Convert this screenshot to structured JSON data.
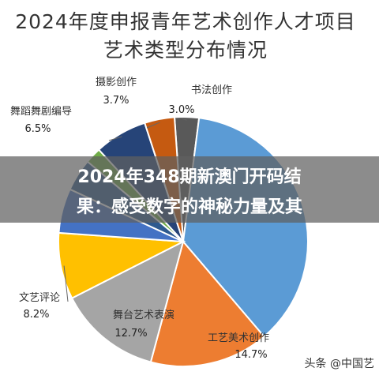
{
  "title_line1": "2024年度申报青年艺术创作人才项目",
  "title_line2": "艺术类型分布情况",
  "overlay": {
    "line1": "2024年348期新澳门开码结",
    "line2": "果：感受数字的神秘力量及其"
  },
  "watermark": "头条 @中国艺",
  "chart_data": {
    "type": "pie",
    "title": "2024年度申报青年艺术创作人才项目艺术类型分布情况",
    "categories": [
      "书法创作",
      "",
      "工艺美术创作",
      "舞台艺术表演",
      "文艺评论",
      "",
      "",
      "",
      "舞蹈舞剧编导",
      "摄影创作"
    ],
    "values": [
      3.0,
      35.0,
      14.7,
      12.7,
      8.2,
      5.5,
      4.0,
      2.0,
      6.5,
      3.7
    ],
    "labels": [
      "3.0%",
      "",
      "14.7%",
      "12.7%",
      "8.2%",
      "",
      "",
      "",
      "6.5%",
      "3.7%"
    ],
    "colors": [
      "#595959",
      "#5B9BD5",
      "#ED7D31",
      "#A5A5A5",
      "#FFC000",
      "#4472C4",
      "#2E5A8F",
      "#70AD47",
      "#264478",
      "#C55A11"
    ]
  }
}
